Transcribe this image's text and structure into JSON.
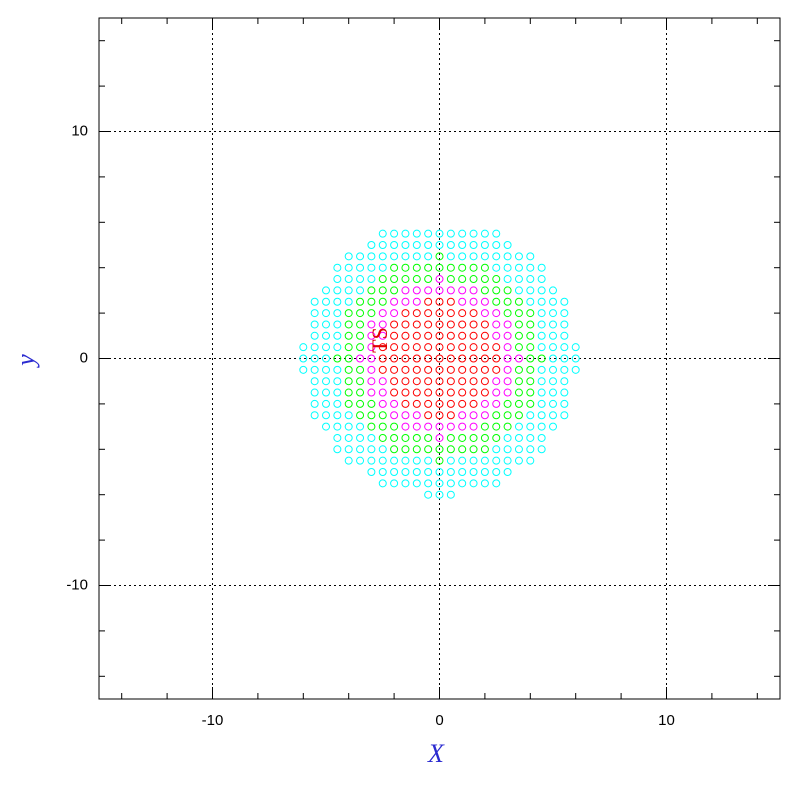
{
  "chart_data": {
    "type": "scatter",
    "xlabel": "X",
    "ylabel": "y",
    "annotation": "TS",
    "xlim": [
      -15,
      15
    ],
    "ylim": [
      -15,
      15
    ],
    "xticks": [
      -10,
      0,
      10
    ],
    "yticks": [
      -10,
      0,
      10
    ],
    "xminorticks": [
      -14,
      -12,
      -8,
      -6,
      -4,
      -2,
      2,
      4,
      6,
      8,
      12,
      14
    ],
    "yminorticks": [
      -14,
      -12,
      -8,
      -6,
      -4,
      -2,
      2,
      4,
      6,
      8,
      12,
      14
    ],
    "grid": true,
    "series": [
      {
        "color": "#ff0000",
        "x": [
          -0.5,
          0,
          0.5,
          -1.5,
          -1,
          -0.5,
          0,
          0.5,
          1,
          1.5,
          -2,
          -1.5,
          -1,
          -0.5,
          0,
          0.5,
          1,
          1.5,
          2,
          -2,
          -1.5,
          -1,
          -0.5,
          0,
          0.5,
          1,
          1.5,
          2,
          -2.5,
          -2,
          -1.5,
          -1,
          -0.5,
          0,
          0.5,
          1,
          1.5,
          2,
          2.5,
          -2.5,
          -2,
          -1.5,
          -1,
          -0.5,
          0,
          0.5,
          1,
          1.5,
          2,
          2.5,
          -2.5,
          -2,
          -1.5,
          -1,
          -0.5,
          0,
          0.5,
          1,
          1.5,
          2,
          2.5,
          -2,
          -1.5,
          -1,
          -0.5,
          0,
          0.5,
          1,
          1.5,
          2,
          -2,
          -1.5,
          -1,
          -0.5,
          0,
          0.5,
          1,
          1.5,
          2,
          -1.5,
          -1,
          -0.5,
          0,
          0.5,
          1,
          1.5,
          -0.5,
          0,
          0.5
        ],
        "y": [
          2.5,
          2.5,
          2.5,
          2,
          2,
          2,
          2,
          2,
          2,
          2,
          1.5,
          1.5,
          1.5,
          1.5,
          1.5,
          1.5,
          1.5,
          1.5,
          1.5,
          1,
          1,
          1,
          1,
          1,
          1,
          1,
          1,
          1,
          0.5,
          0.5,
          0.5,
          0.5,
          0.5,
          0.5,
          0.5,
          0.5,
          0.5,
          0.5,
          0.5,
          0,
          0,
          0,
          0,
          0,
          0,
          0,
          0,
          0,
          0,
          0,
          -0.5,
          -0.5,
          -0.5,
          -0.5,
          -0.5,
          -0.5,
          -0.5,
          -0.5,
          -0.5,
          -0.5,
          -0.5,
          -1,
          -1,
          -1,
          -1,
          -1,
          -1,
          -1,
          -1,
          -1,
          -1.5,
          -1.5,
          -1.5,
          -1.5,
          -1.5,
          -1.5,
          -1.5,
          -1.5,
          -1.5,
          -2,
          -2,
          -2,
          -2,
          -2,
          -2,
          -2,
          -2.5,
          -2.5,
          -2.5
        ]
      },
      {
        "color": "#ff00ff",
        "x": [
          0,
          -1.5,
          -1,
          -0.5,
          0,
          0.5,
          1,
          1.5,
          -2,
          -1.5,
          -1,
          1,
          1.5,
          2,
          -2.5,
          -2,
          2,
          2.5,
          -3,
          -2.5,
          2.5,
          3,
          -3,
          -2.5,
          2.5,
          3,
          -3,
          3,
          -3.5,
          -3,
          3,
          3.5,
          -3,
          3,
          -3,
          -2.5,
          2.5,
          3,
          -3,
          -2.5,
          2.5,
          3,
          -2.5,
          -2,
          2,
          2.5,
          -2,
          -1.5,
          -1,
          1,
          1.5,
          2,
          -1.5,
          -1,
          -0.5,
          0,
          0.5,
          1,
          1.5,
          0
        ],
        "y": [
          3.5,
          3,
          3,
          3,
          3,
          3,
          3,
          3,
          2.5,
          2.5,
          2.5,
          2.5,
          2.5,
          2.5,
          2,
          2,
          2,
          2,
          1.5,
          1.5,
          1.5,
          1.5,
          1,
          1,
          1,
          1,
          0.5,
          0.5,
          0,
          0,
          0,
          0,
          -0.5,
          -0.5,
          -1,
          -1,
          -1,
          -1,
          -1.5,
          -1.5,
          -1.5,
          -1.5,
          -2,
          -2,
          -2,
          -2,
          -2.5,
          -2.5,
          -2.5,
          -2.5,
          -2.5,
          -2.5,
          -3,
          -3,
          -3,
          -3,
          -3,
          -3,
          -3,
          -3.5
        ]
      },
      {
        "color": "#00ff00",
        "x": [
          0,
          -2,
          -1.5,
          -1,
          -0.5,
          0,
          0.5,
          1,
          1.5,
          2,
          -2.5,
          -2,
          -1.5,
          -1,
          -0.5,
          0.5,
          1,
          1.5,
          2,
          2.5,
          -3,
          -2.5,
          -2,
          2,
          2.5,
          3,
          -3.5,
          -3,
          -2.5,
          2.5,
          3,
          3.5,
          -4,
          -3.5,
          -3,
          3,
          3.5,
          4,
          -4,
          -3.5,
          3.5,
          4,
          -4,
          -3.5,
          3.5,
          4,
          -4,
          -3.5,
          3.5,
          4,
          -4.5,
          -4,
          4,
          4.5,
          -4,
          -3.5,
          3.5,
          4,
          -4,
          -3.5,
          3.5,
          4,
          -4,
          -3.5,
          3.5,
          4,
          -4,
          -3.5,
          -3,
          3,
          3.5,
          4,
          -3.5,
          -3,
          -2.5,
          2.5,
          3,
          3.5,
          -3,
          -2.5,
          -2,
          2,
          2.5,
          3,
          -2.5,
          -2,
          -1.5,
          -1,
          -0.5,
          0.5,
          1,
          1.5,
          2,
          2.5,
          -2,
          -1.5,
          -1,
          -0.5,
          0,
          0.5,
          1,
          1.5,
          2,
          0
        ],
        "y": [
          4.5,
          4,
          4,
          4,
          4,
          4,
          4,
          4,
          4,
          4,
          3.5,
          3.5,
          3.5,
          3.5,
          3.5,
          3.5,
          3.5,
          3.5,
          3.5,
          3.5,
          3,
          3,
          3,
          3,
          3,
          3,
          2.5,
          2.5,
          2.5,
          2.5,
          2.5,
          2.5,
          2,
          2,
          2,
          2,
          2,
          2,
          1.5,
          1.5,
          1.5,
          1.5,
          1,
          1,
          1,
          1,
          0.5,
          0.5,
          0.5,
          0.5,
          0,
          0,
          0,
          0,
          -0.5,
          -0.5,
          -0.5,
          -0.5,
          -1,
          -1,
          -1,
          -1,
          -1.5,
          -1.5,
          -1.5,
          -1.5,
          -2,
          -2,
          -2,
          -2,
          -2,
          -2,
          -2.5,
          -2.5,
          -2.5,
          -2.5,
          -2.5,
          -2.5,
          -3,
          -3,
          -3,
          -3,
          -3,
          -3,
          -3.5,
          -3.5,
          -3.5,
          -3.5,
          -3.5,
          -3.5,
          -3.5,
          -3.5,
          -3.5,
          -3.5,
          -4,
          -4,
          -4,
          -4,
          -4,
          -4,
          -4,
          -4,
          -4,
          -4.5
        ]
      },
      {
        "color": "#00ffff",
        "x": [
          -2.5,
          -2,
          -1.5,
          -1,
          -0.5,
          0,
          0.5,
          1,
          1.5,
          2,
          2.5,
          -3,
          -2.5,
          -2,
          -1.5,
          -1,
          -0.5,
          0,
          0.5,
          1,
          1.5,
          2,
          2.5,
          3,
          -4,
          -3.5,
          -3,
          -2.5,
          -2,
          -1.5,
          -1,
          -0.5,
          0.5,
          1,
          1.5,
          2,
          2.5,
          3,
          3.5,
          4,
          -4.5,
          -4,
          -3.5,
          -3,
          -2.5,
          2.5,
          3,
          3.5,
          4,
          4.5,
          -4.5,
          -4,
          -3.5,
          -3,
          3,
          3.5,
          4,
          4.5,
          -5,
          -4.5,
          -4,
          -3.5,
          3.5,
          4,
          4.5,
          5,
          -5.5,
          -5,
          -4.5,
          -4,
          4,
          4.5,
          5,
          5.5,
          -5.5,
          -5,
          -4.5,
          4.5,
          5,
          5.5,
          -5.5,
          -5,
          -4.5,
          4.5,
          5,
          5.5,
          -5.5,
          -5,
          -4.5,
          4.5,
          5,
          5.5,
          -6,
          -5.5,
          -5,
          -4.5,
          4.5,
          5,
          5.5,
          6,
          -6,
          -5.5,
          -5,
          5,
          5.5,
          6,
          -6,
          -5.5,
          -5,
          -4.5,
          4.5,
          5,
          5.5,
          6,
          -5.5,
          -5,
          -4.5,
          4.5,
          5,
          5.5,
          -5.5,
          -5,
          -4.5,
          4.5,
          5,
          5.5,
          -5.5,
          -5,
          -4.5,
          4.5,
          5,
          5.5,
          -5.5,
          -5,
          -4.5,
          -4,
          4,
          4.5,
          5,
          5.5,
          -5,
          -4.5,
          -4,
          -3.5,
          3.5,
          4,
          4.5,
          5,
          -4.5,
          -4,
          -3.5,
          -3,
          3,
          3.5,
          4,
          4.5,
          -4.5,
          -4,
          -3.5,
          -3,
          -2.5,
          2.5,
          3,
          3.5,
          4,
          4.5,
          -4,
          -3.5,
          -3,
          -2.5,
          -2,
          -1.5,
          -1,
          -0.5,
          0.5,
          1,
          1.5,
          2,
          2.5,
          3,
          3.5,
          4,
          -3,
          -2.5,
          -2,
          -1.5,
          -1,
          -0.5,
          0,
          0.5,
          1,
          1.5,
          2,
          2.5,
          3,
          -2.5,
          -2,
          -1.5,
          -1,
          -0.5,
          0,
          0.5,
          1,
          1.5,
          2,
          2.5,
          -0.5,
          0,
          0.5
        ],
        "y": [
          5.5,
          5.5,
          5.5,
          5.5,
          5.5,
          5.5,
          5.5,
          5.5,
          5.5,
          5.5,
          5.5,
          5,
          5,
          5,
          5,
          5,
          5,
          5,
          5,
          5,
          5,
          5,
          5,
          5,
          4.5,
          4.5,
          4.5,
          4.5,
          4.5,
          4.5,
          4.5,
          4.5,
          4.5,
          4.5,
          4.5,
          4.5,
          4.5,
          4.5,
          4.5,
          4.5,
          4,
          4,
          4,
          4,
          4,
          4,
          4,
          4,
          4,
          4,
          3.5,
          3.5,
          3.5,
          3.5,
          3.5,
          3.5,
          3.5,
          3.5,
          3,
          3,
          3,
          3,
          3,
          3,
          3,
          3,
          2.5,
          2.5,
          2.5,
          2.5,
          2.5,
          2.5,
          2.5,
          2.5,
          2,
          2,
          2,
          2,
          2,
          2,
          1.5,
          1.5,
          1.5,
          1.5,
          1.5,
          1.5,
          1,
          1,
          1,
          1,
          1,
          1,
          0.5,
          0.5,
          0.5,
          0.5,
          0.5,
          0.5,
          0.5,
          0.5,
          0,
          0,
          0,
          0,
          0,
          0,
          -0.5,
          -0.5,
          -0.5,
          -0.5,
          -0.5,
          -0.5,
          -0.5,
          -0.5,
          -1,
          -1,
          -1,
          -1,
          -1,
          -1,
          -1.5,
          -1.5,
          -1.5,
          -1.5,
          -1.5,
          -1.5,
          -2,
          -2,
          -2,
          -2,
          -2,
          -2,
          -2.5,
          -2.5,
          -2.5,
          -2.5,
          -2.5,
          -2.5,
          -2.5,
          -2.5,
          -3,
          -3,
          -3,
          -3,
          -3,
          -3,
          -3,
          -3,
          -3.5,
          -3.5,
          -3.5,
          -3.5,
          -3.5,
          -3.5,
          -3.5,
          -3.5,
          -4,
          -4,
          -4,
          -4,
          -4,
          -4,
          -4,
          -4,
          -4,
          -4,
          -4.5,
          -4.5,
          -4.5,
          -4.5,
          -4.5,
          -4.5,
          -4.5,
          -4.5,
          -4.5,
          -4.5,
          -4.5,
          -4.5,
          -4.5,
          -4.5,
          -4.5,
          -4.5,
          -5,
          -5,
          -5,
          -5,
          -5,
          -5,
          -5,
          -5,
          -5,
          -5,
          -5,
          -5,
          -5,
          -5.5,
          -5.5,
          -5.5,
          -5.5,
          -5.5,
          -5.5,
          -5.5,
          -5.5,
          -5.5,
          -5.5,
          -5.5,
          -6,
          -6,
          -6
        ]
      }
    ]
  }
}
